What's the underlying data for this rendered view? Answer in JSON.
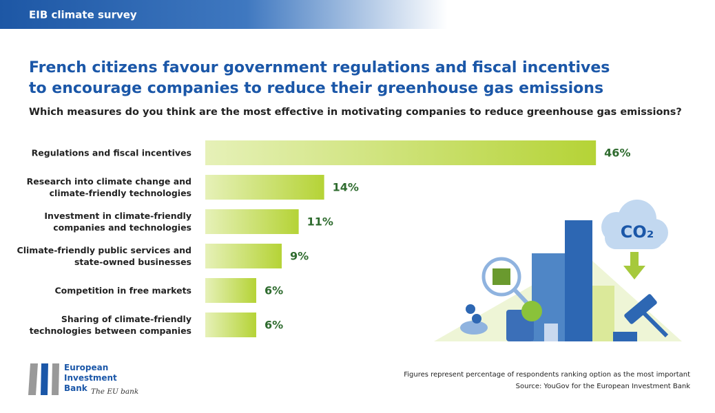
{
  "header": "EIB climate survey",
  "chart_data": {
    "type": "bar",
    "title": "French citizens favour government regulations and fiscal incentives\nto encourage companies to reduce their greenhouse gas emissions",
    "subtitle": "Which measures do you think are the most effective in motivating companies to reduce greenhouse gas emissions?",
    "categories": [
      "Regulations and fiscal incentives",
      "Research into climate change and\nclimate-friendly technologies",
      "Investment in climate-friendly\ncompanies and technologies",
      "Climate-friendly public services and\nstate-owned businesses",
      "Competition in free markets",
      "Sharing of climate-friendly\ntechnologies between companies"
    ],
    "values": [
      46,
      14,
      11,
      9,
      6,
      6
    ],
    "value_labels": [
      "46%",
      "14%",
      "11%",
      "9%",
      "6%",
      "6%"
    ],
    "color": "#b5d336",
    "note": "Figures represent percentage of respondents ranking option as the most important",
    "source": "Source: YouGov for the European Investment Bank"
  },
  "illustration_text": "CO₂",
  "logo": {
    "name": "European\nInvestment\nBank",
    "tagline": "The EU bank"
  }
}
